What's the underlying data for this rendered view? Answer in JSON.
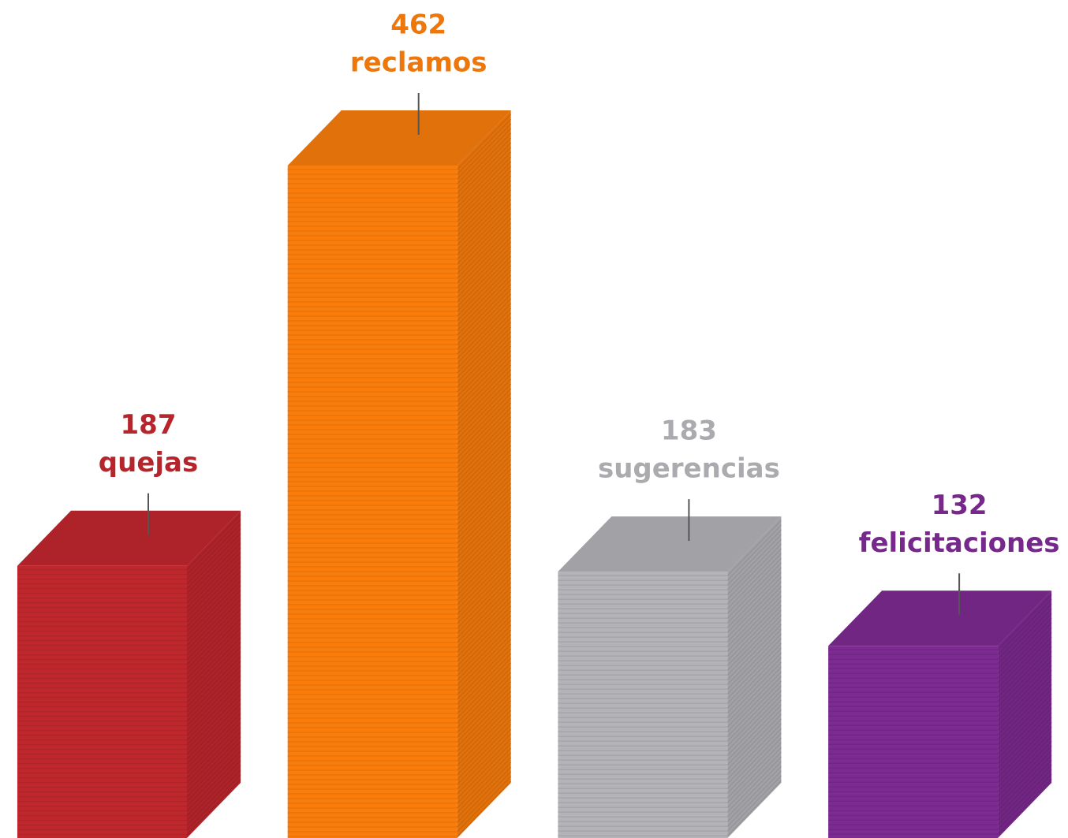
{
  "chart_data": {
    "type": "bar3d",
    "categories": [
      "quejas",
      "reclamos",
      "sugerencias",
      "felicitaciones"
    ],
    "values": [
      187,
      462,
      183,
      132
    ],
    "colors": [
      "#c0272d",
      "#fa7d0c",
      "#b4b4b8",
      "#7d2a92"
    ]
  }
}
